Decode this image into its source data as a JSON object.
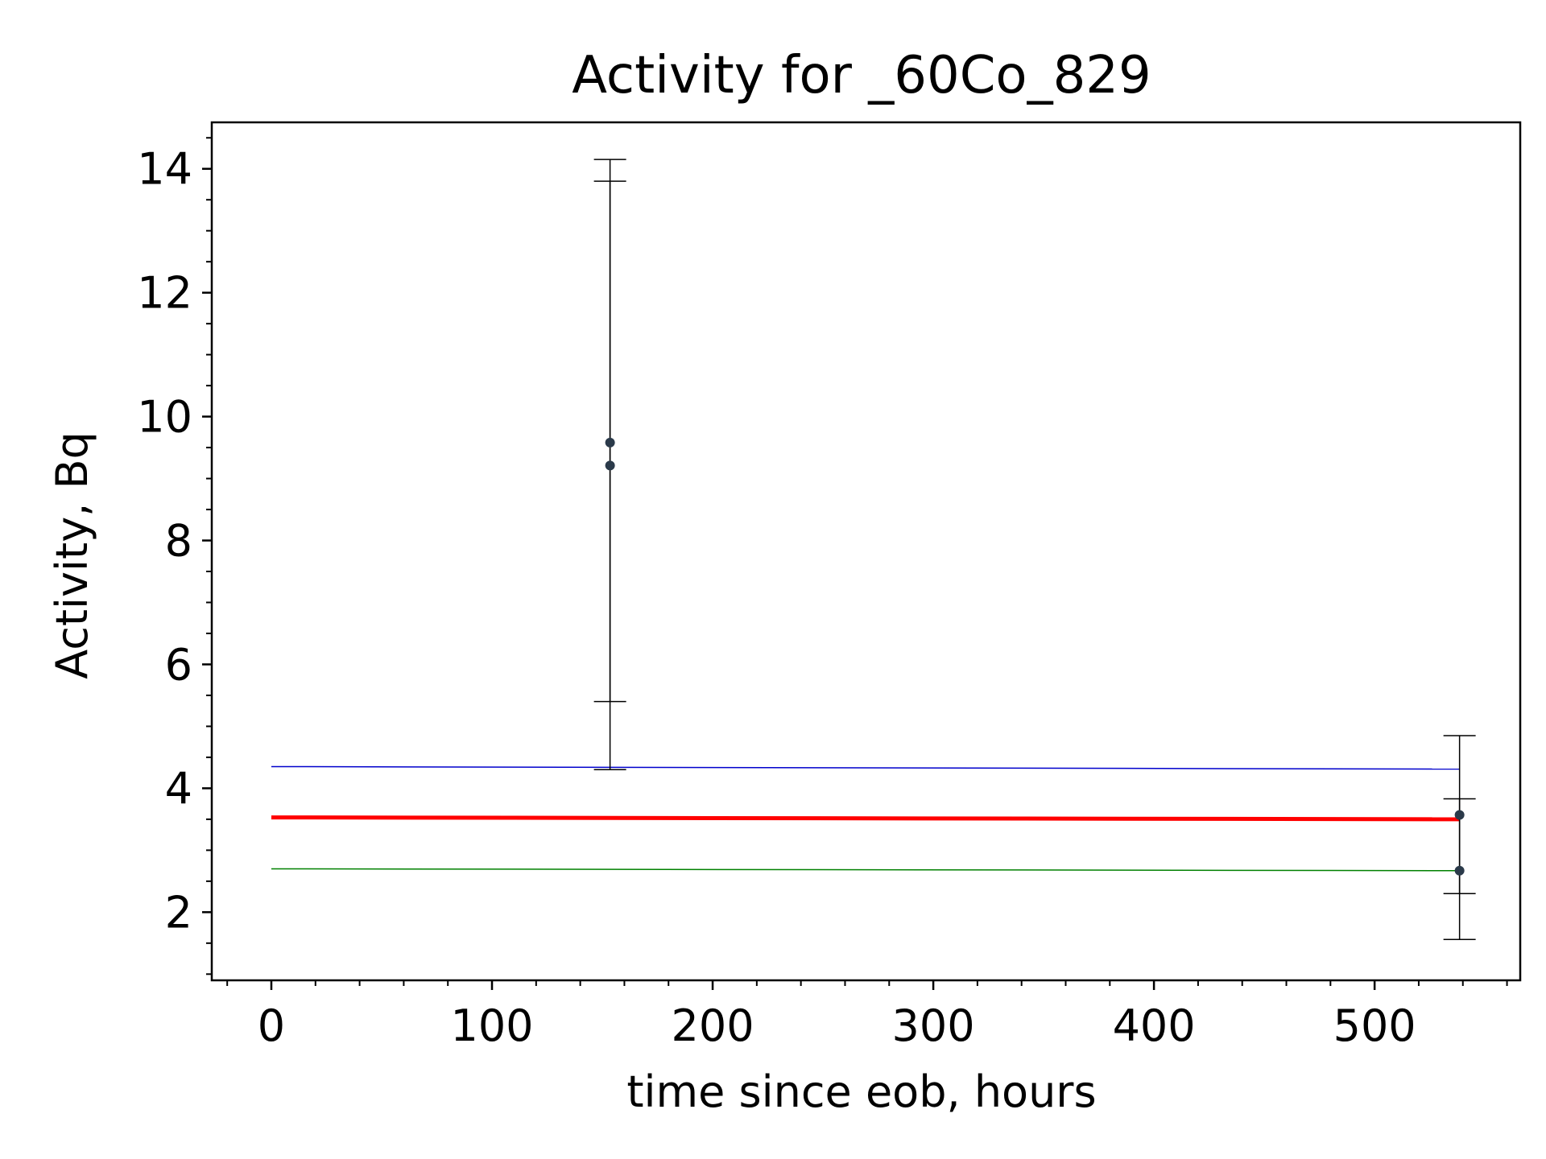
{
  "chart_data": {
    "type": "scatter",
    "title": "Activity for _60Co_829",
    "xlabel": "time since eob, hours",
    "ylabel": "Activity, Bq",
    "xlim": [
      -27,
      566
    ],
    "ylim": [
      0.9,
      14.75
    ],
    "x_ticks": [
      0,
      100,
      200,
      300,
      400,
      500
    ],
    "y_ticks": [
      2,
      4,
      6,
      8,
      10,
      12,
      14
    ],
    "grid": false,
    "legend": "none",
    "points": [
      {
        "x": 153.5,
        "y": 9.58,
        "yerr_low": 5.28,
        "yerr_high": 4.57
      },
      {
        "x": 153.5,
        "y": 9.21,
        "yerr_low": 3.81,
        "yerr_high": 4.59
      },
      {
        "x": 538.5,
        "y": 3.57,
        "yerr_low": 1.27,
        "yerr_high": 1.28
      },
      {
        "x": 538.5,
        "y": 2.67,
        "yerr_low": 1.11,
        "yerr_high": 1.16
      }
    ],
    "lines": [
      {
        "color": "#ff0000",
        "x": [
          0,
          538.5
        ],
        "y": [
          3.53,
          3.5
        ]
      },
      {
        "color": "#0000cc",
        "x": [
          0,
          538.5
        ],
        "y": [
          4.35,
          4.31
        ]
      },
      {
        "color": "#008000",
        "x": [
          0,
          538.5
        ],
        "y": [
          2.7,
          2.67
        ]
      }
    ],
    "marker_color": "#2b3a4a",
    "errorbar_color": "#000000"
  }
}
